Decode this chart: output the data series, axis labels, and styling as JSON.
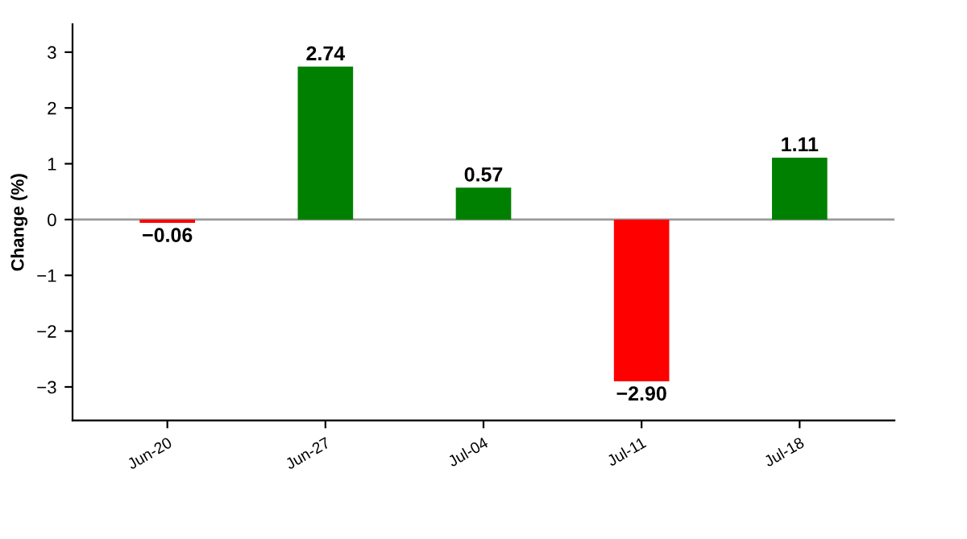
{
  "chart_data": {
    "type": "bar",
    "ylabel": "Change (%)",
    "categories": [
      "Jun-20",
      "Jun-27",
      "Jul-04",
      "Jul-11",
      "Jul-18"
    ],
    "values": [
      -0.06,
      2.74,
      0.57,
      -2.9,
      1.11
    ],
    "colors": [
      "#ff0000",
      "#008000",
      "#008000",
      "#ff0000",
      "#008000"
    ],
    "value_labels": [
      "−0.06",
      "2.74",
      "0.57",
      "−2.90",
      "1.11"
    ],
    "ylim": [
      -3.6,
      3.5
    ],
    "yticks": [
      {
        "value": -3,
        "label": "−3"
      },
      {
        "value": -2,
        "label": "−2"
      },
      {
        "value": -1,
        "label": "−1"
      },
      0,
      1,
      2,
      3
    ],
    "ref_lines": [
      {
        "axis": "y",
        "value": 0,
        "color": "#999999"
      }
    ],
    "grid": false,
    "legend": false
  }
}
